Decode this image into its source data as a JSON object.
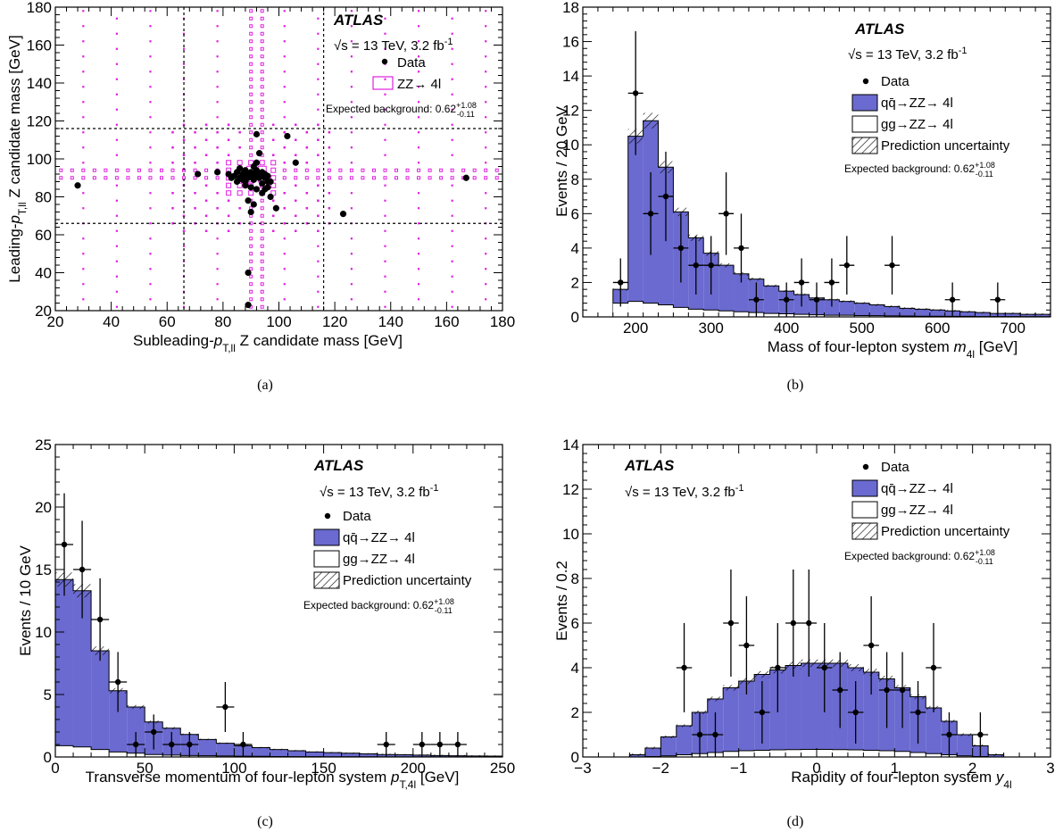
{
  "common": {
    "atlas": "ATLAS",
    "energy": "√s = 13 TeV, 3.2 fb",
    "energy_sup": "-1",
    "data_label": "Data",
    "qq_label": "qq̄→ZZ→ 4l",
    "gg_label": "gg→ZZ→ 4l",
    "unc_label": "Prediction uncertainty",
    "bkg_label": "Expected background: 0.62",
    "bkg_up": "+1.08",
    "bkg_dn": "-0.11",
    "zz_label": "ZZ→ 4l"
  },
  "colors": {
    "qq": "#6a6ad0",
    "gg": "#ffffff",
    "zz": "#e020e0",
    "data": "#000000"
  },
  "captions": [
    "(a)",
    "(b)",
    "(c)",
    "(d)"
  ],
  "chart_data": [
    {
      "type": "scatter",
      "caption": "(a)",
      "xlabel": "Subleading-p T,ll Z candidate mass [GeV]",
      "ylabel": "Leading-p T,ll Z candidate mass [GeV]",
      "xlim": [
        20,
        180
      ],
      "ylim": [
        20,
        180
      ],
      "xticks": [
        20,
        40,
        60,
        80,
        100,
        120,
        140,
        160,
        180
      ],
      "yticks": [
        20,
        40,
        60,
        80,
        100,
        120,
        140,
        160,
        180
      ],
      "cut_lines_x": [
        66,
        116
      ],
      "cut_lines_y": [
        66,
        116
      ],
      "data_points": [
        [
          28,
          86
        ],
        [
          71,
          92
        ],
        [
          78,
          93
        ],
        [
          82,
          92
        ],
        [
          83,
          90
        ],
        [
          84,
          91
        ],
        [
          85,
          93
        ],
        [
          86,
          90
        ],
        [
          86,
          95
        ],
        [
          87,
          92
        ],
        [
          87,
          89
        ],
        [
          88,
          91
        ],
        [
          88,
          94
        ],
        [
          89,
          92
        ],
        [
          89,
          90
        ],
        [
          90,
          91
        ],
        [
          90,
          93
        ],
        [
          91,
          89
        ],
        [
          91,
          92
        ],
        [
          92,
          91
        ],
        [
          92,
          94
        ],
        [
          93,
          90
        ],
        [
          93,
          92
        ],
        [
          94,
          91
        ],
        [
          94,
          93
        ],
        [
          95,
          90
        ],
        [
          95,
          92
        ],
        [
          96,
          91
        ],
        [
          88,
          86
        ],
        [
          90,
          85
        ],
        [
          92,
          84
        ],
        [
          94,
          87
        ],
        [
          95,
          84
        ],
        [
          96,
          85
        ],
        [
          97,
          80
        ],
        [
          99,
          74
        ],
        [
          90,
          72
        ],
        [
          91,
          76
        ],
        [
          89,
          78
        ],
        [
          92,
          98
        ],
        [
          93,
          103
        ],
        [
          92,
          113
        ],
        [
          103,
          112
        ],
        [
          106,
          98
        ],
        [
          96,
          88
        ],
        [
          88,
          88
        ],
        [
          85,
          88
        ],
        [
          123,
          71
        ],
        [
          167,
          90
        ],
        [
          89,
          40
        ],
        [
          89,
          23
        ],
        [
          94,
          82
        ],
        [
          91,
          96
        ],
        [
          97,
          88
        ]
      ]
    },
    {
      "type": "histogram",
      "caption": "(b)",
      "xlabel": "Mass of four-lepton system m 4l [GeV]",
      "ylabel": "Events / 20 GeV",
      "xlim": [
        130,
        750
      ],
      "ylim": [
        0,
        18
      ],
      "xticks": [
        200,
        300,
        400,
        500,
        600,
        700
      ],
      "yticks": [
        0,
        2,
        4,
        6,
        8,
        10,
        12,
        14,
        16,
        18
      ],
      "bin_width": 20,
      "bin_edges_start": 170,
      "qq_total": [
        1.6,
        10.5,
        11.4,
        8.7,
        6.1,
        4.6,
        3.7,
        3.0,
        2.5,
        2.2,
        1.8,
        1.5,
        1.3,
        1.1,
        1.0,
        0.9,
        0.8,
        0.7,
        0.6,
        0.5,
        0.45,
        0.4,
        0.35,
        0.3,
        0.25,
        0.2,
        0.2,
        0.15,
        0.15
      ],
      "gg": [
        0.8,
        0.9,
        0.8,
        0.7,
        0.55,
        0.45,
        0.4,
        0.35,
        0.3,
        0.25,
        0.2,
        0.18,
        0.15,
        0.12,
        0.1,
        0.1,
        0.08,
        0.07,
        0.06,
        0.05,
        0.04,
        0.04,
        0.03,
        0.03,
        0.02,
        0.02,
        0.02,
        0.01,
        0.01
      ],
      "data_points": [
        [
          180,
          2,
          1.4
        ],
        [
          200,
          13,
          3.6
        ],
        [
          220,
          6,
          2.4
        ],
        [
          240,
          7,
          2.6
        ],
        [
          260,
          4,
          2
        ],
        [
          280,
          3,
          1.7
        ],
        [
          300,
          3,
          1.7
        ],
        [
          320,
          6,
          2.4
        ],
        [
          340,
          4,
          2
        ],
        [
          360,
          1,
          1
        ],
        [
          400,
          1,
          1
        ],
        [
          420,
          2,
          1.4
        ],
        [
          440,
          1,
          1
        ],
        [
          460,
          2,
          1.4
        ],
        [
          480,
          3,
          1.7
        ],
        [
          540,
          3,
          1.7
        ],
        [
          620,
          1,
          1
        ],
        [
          680,
          1,
          1
        ]
      ]
    },
    {
      "type": "histogram",
      "caption": "(c)",
      "xlabel": "Transverse momentum of four-lepton system p T,4l [GeV]",
      "ylabel": "Events / 10 GeV",
      "xlim": [
        0,
        250
      ],
      "ylim": [
        0,
        25
      ],
      "xticks": [
        0,
        50,
        100,
        150,
        200,
        250
      ],
      "yticks": [
        0,
        5,
        10,
        15,
        20,
        25
      ],
      "bin_width": 10,
      "bin_edges_start": 0,
      "qq_total": [
        14.2,
        13.3,
        8.5,
        5.3,
        4.0,
        2.8,
        2.3,
        1.8,
        1.4,
        1.1,
        0.9,
        0.75,
        0.6,
        0.5,
        0.4,
        0.35,
        0.3,
        0.25,
        0.2,
        0.18,
        0.15,
        0.12,
        0.1,
        0.08,
        0.07
      ],
      "gg": [
        0.9,
        0.8,
        0.6,
        0.4,
        0.3,
        0.2,
        0.15,
        0.12,
        0.1,
        0.08,
        0.06,
        0.05,
        0.04,
        0.03,
        0.03,
        0.02,
        0.02,
        0.02,
        0.01,
        0.01,
        0.01,
        0.01,
        0.01,
        0.01,
        0.01
      ],
      "data_points": [
        [
          5,
          17,
          4.1
        ],
        [
          15,
          15,
          3.9
        ],
        [
          25,
          11,
          3.3
        ],
        [
          35,
          6,
          2.4
        ],
        [
          45,
          1,
          1
        ],
        [
          55,
          2,
          1.4
        ],
        [
          65,
          1,
          1
        ],
        [
          75,
          1,
          1
        ],
        [
          95,
          4,
          2
        ],
        [
          105,
          1,
          1
        ],
        [
          185,
          1,
          1
        ],
        [
          205,
          1,
          1
        ],
        [
          215,
          1,
          1
        ],
        [
          225,
          1,
          1
        ]
      ]
    },
    {
      "type": "histogram",
      "caption": "(d)",
      "xlabel": "Rapidity of four-lepton system y 4l",
      "ylabel": "Events / 0.2",
      "xlim": [
        -3,
        3
      ],
      "ylim": [
        0,
        14
      ],
      "xticks": [
        -3,
        -2,
        -1,
        0,
        1,
        2,
        3
      ],
      "yticks": [
        0,
        2,
        4,
        6,
        8,
        10,
        12,
        14
      ],
      "bin_width": 0.2,
      "bin_edges_start": -2.4,
      "qq_total": [
        0.1,
        0.4,
        0.9,
        1.4,
        2.0,
        2.6,
        3.1,
        3.4,
        3.7,
        3.9,
        4.1,
        4.2,
        4.2,
        4.2,
        4.0,
        3.8,
        3.5,
        3.1,
        2.7,
        2.2,
        1.6,
        1.0,
        0.5,
        0.1
      ],
      "gg": [
        0.0,
        0.02,
        0.05,
        0.1,
        0.15,
        0.2,
        0.25,
        0.28,
        0.3,
        0.32,
        0.33,
        0.34,
        0.34,
        0.33,
        0.32,
        0.3,
        0.28,
        0.25,
        0.2,
        0.15,
        0.1,
        0.05,
        0.02,
        0.0
      ],
      "data_points": [
        [
          -1.7,
          4,
          2
        ],
        [
          -1.5,
          1,
          1
        ],
        [
          -1.3,
          1,
          1
        ],
        [
          -1.1,
          6,
          2.4
        ],
        [
          -0.9,
          5,
          2.2
        ],
        [
          -0.7,
          2,
          1.4
        ],
        [
          -0.5,
          4,
          2
        ],
        [
          -0.3,
          6,
          2.4
        ],
        [
          -0.1,
          6,
          2.4
        ],
        [
          0.1,
          4,
          2
        ],
        [
          0.3,
          3,
          1.7
        ],
        [
          0.5,
          2,
          1.4
        ],
        [
          0.7,
          5,
          2.2
        ],
        [
          0.9,
          3,
          1.7
        ],
        [
          1.1,
          3,
          1.7
        ],
        [
          1.3,
          2,
          1.4
        ],
        [
          1.5,
          4,
          2
        ],
        [
          1.7,
          1,
          1
        ],
        [
          2.1,
          1,
          1
        ]
      ]
    }
  ]
}
